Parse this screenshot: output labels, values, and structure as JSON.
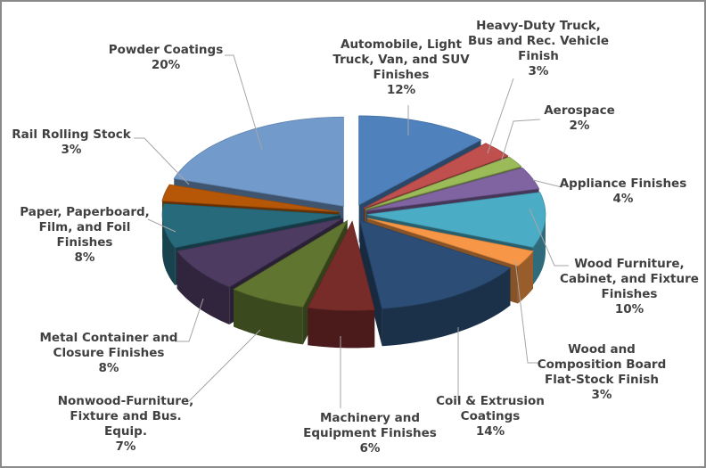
{
  "chart_data": {
    "type": "pie",
    "style": "3d-exploded",
    "title": "",
    "slices": [
      {
        "name": "Automobile, Light Truck, Van, and SUV Finishes",
        "lines": [
          "Automobile, Light",
          "Truck, Van, and SUV",
          "Finishes"
        ],
        "value": 12,
        "pct_label": "12%",
        "color": "#4f81bd"
      },
      {
        "name": "Heavy-Duty Truck, Bus and Rec. Vehicle Finish",
        "lines": [
          "Heavy-Duty Truck,",
          "Bus and Rec. Vehicle",
          "Finish"
        ],
        "value": 3,
        "pct_label": "3%",
        "color": "#c0504d"
      },
      {
        "name": "Aerospace",
        "lines": [
          "Aerospace"
        ],
        "value": 2,
        "pct_label": "2%",
        "color": "#9bbb59"
      },
      {
        "name": "Appliance Finishes",
        "lines": [
          "Appliance Finishes"
        ],
        "value": 4,
        "pct_label": "4%",
        "color": "#8064a2"
      },
      {
        "name": "Wood Furniture, Cabinet, and Fixture Finishes",
        "lines": [
          "Wood Furniture,",
          "Cabinet, and Fixture",
          "Finishes"
        ],
        "value": 10,
        "pct_label": "10%",
        "color": "#4bacc6"
      },
      {
        "name": "Wood and Composition Board Flat-Stock Finish",
        "lines": [
          "Wood and",
          "Composition Board",
          "Flat-Stock Finish"
        ],
        "value": 3,
        "pct_label": "3%",
        "color": "#f79646"
      },
      {
        "name": "Coil & Extrusion Coatings",
        "lines": [
          "Coil & Extrusion",
          "Coatings"
        ],
        "value": 14,
        "pct_label": "14%",
        "color": "#2c4d75"
      },
      {
        "name": "Machinery and Equipment Finishes",
        "lines": [
          "Machinery and",
          "Equipment Finishes"
        ],
        "value": 6,
        "pct_label": "6%",
        "color": "#772c2a"
      },
      {
        "name": "Nonwood-Furniture, Fixture and Bus. Equip.",
        "lines": [
          "Nonwood-Furniture,",
          "Fixture and Bus.",
          "Equip."
        ],
        "value": 7,
        "pct_label": "7%",
        "color": "#5f7530"
      },
      {
        "name": "Metal Container and Closure Finishes",
        "lines": [
          "Metal Container and",
          "Closure Finishes"
        ],
        "value": 8,
        "pct_label": "8%",
        "color": "#4d3b62"
      },
      {
        "name": "Paper, Paperboard, Film, and Foil Finishes",
        "lines": [
          "Paper, Paperboard,",
          "Film, and Foil",
          "Finishes"
        ],
        "value": 8,
        "pct_label": "8%",
        "color": "#276a7c"
      },
      {
        "name": "Rail Rolling Stock",
        "lines": [
          "Rail Rolling Stock"
        ],
        "value": 3,
        "pct_label": "3%",
        "color": "#b65708"
      },
      {
        "name": "Powder Coatings",
        "lines": [
          "Powder Coatings"
        ],
        "value": 20,
        "pct_label": "20%",
        "color": "#729aca"
      }
    ],
    "legend": "none",
    "data_labels": "outside with leader lines"
  }
}
